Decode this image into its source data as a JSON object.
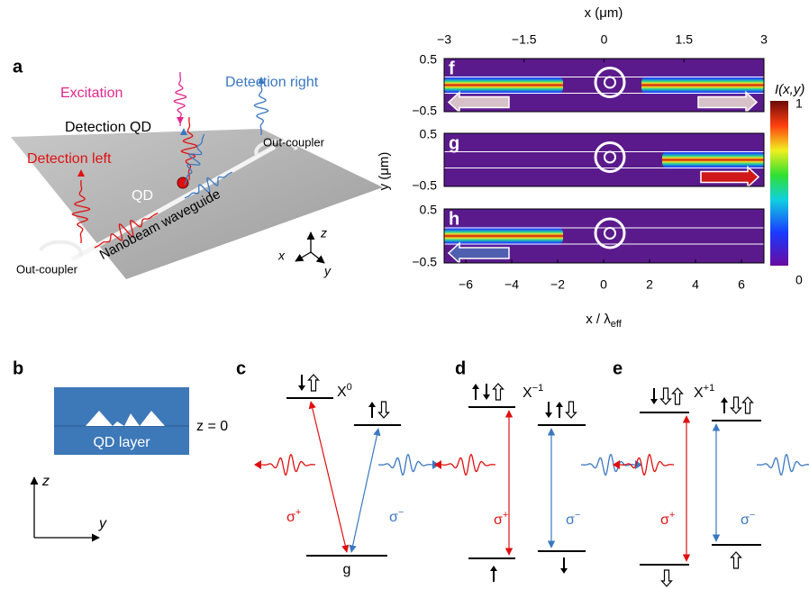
{
  "panel_a": {
    "label": "a",
    "excitation": "Excitation",
    "detection_right": "Detection right",
    "detection_qd": "Detection QD",
    "out_coupler_right": "Out-coupler",
    "detection_left": "Detection left",
    "qd": "QD",
    "waveguide": "Nanobeam waveguide",
    "out_coupler_left": "Out-coupler",
    "axis_z": "z",
    "axis_x": "x",
    "axis_y": "y"
  },
  "panel_fgh": {
    "labels": [
      "f",
      "g",
      "h"
    ],
    "top_axis_title": "x (μm)",
    "top_ticks": [
      "−3",
      "−1.5",
      "0",
      "1.5",
      "3"
    ],
    "y_axis_title": "y (μm)",
    "y_ticks": [
      "0.5",
      "−0.5"
    ],
    "bottom_axis_title": "x / λ",
    "bottom_axis_sub": "eff",
    "bottom_ticks": [
      "−6",
      "−4",
      "−2",
      "0",
      "2",
      "4",
      "6"
    ],
    "colorbar_title": "I(x,y)",
    "colorbar_ticks": [
      "1",
      "0"
    ]
  },
  "panel_b": {
    "label": "b",
    "z0": "z = 0",
    "layer": "QD layer",
    "axis_z": "z",
    "axis_y": "y"
  },
  "panel_c": {
    "label": "c",
    "state": "X",
    "state_sup": "0",
    "sigma_plus": "σ",
    "sigma_plus_sup": "+",
    "sigma_minus": "σ",
    "sigma_minus_sup": "−",
    "ground": "g"
  },
  "panel_d": {
    "label": "d",
    "state": "X",
    "state_sup": "−1",
    "sigma_plus": "σ",
    "sigma_plus_sup": "+",
    "sigma_minus": "σ",
    "sigma_minus_sup": "−"
  },
  "panel_e": {
    "label": "e",
    "state": "X",
    "state_sup": "+1",
    "sigma_plus": "σ",
    "sigma_plus_sup": "+",
    "sigma_minus": "σ",
    "sigma_minus_sup": "−"
  }
}
